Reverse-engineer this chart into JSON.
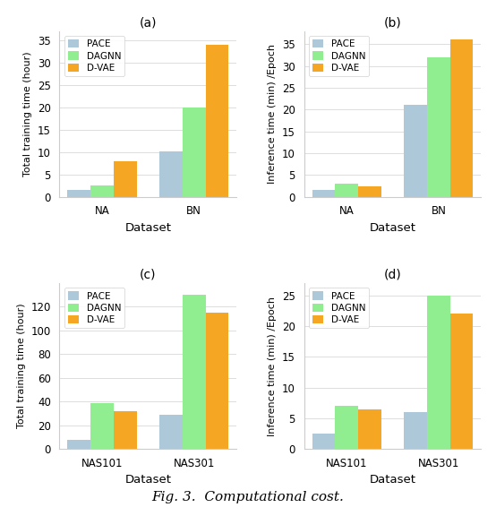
{
  "colors": {
    "PACE": "#adc8d8",
    "DAGNN": "#90ee90",
    "DVAE": "#f5a623"
  },
  "subplot_a": {
    "title": "(a)",
    "xlabel": "Dataset",
    "ylabel": "Total training time (hour)",
    "categories": [
      "NA",
      "BN"
    ],
    "PACE": [
      1.5,
      10.2
    ],
    "DAGNN": [
      2.5,
      20.0
    ],
    "DVAE": [
      8.0,
      34.0
    ],
    "ylim": [
      0,
      37
    ],
    "yticks": [
      0,
      5,
      10,
      15,
      20,
      25,
      30,
      35
    ]
  },
  "subplot_b": {
    "title": "(b)",
    "xlabel": "Dataset",
    "ylabel": "Inference time (min) /Epoch",
    "categories": [
      "NA",
      "BN"
    ],
    "PACE": [
      1.5,
      21.0
    ],
    "DAGNN": [
      3.0,
      32.0
    ],
    "DVAE": [
      2.5,
      36.0
    ],
    "ylim": [
      0,
      38
    ],
    "yticks": [
      0,
      5,
      10,
      15,
      20,
      25,
      30,
      35
    ]
  },
  "subplot_c": {
    "title": "(c)",
    "xlabel": "Dataset",
    "ylabel": "Total training time (hour)",
    "categories": [
      "NAS101",
      "NAS301"
    ],
    "PACE": [
      8.0,
      29.0
    ],
    "DAGNN": [
      39.0,
      130.0
    ],
    "DVAE": [
      32.0,
      115.0
    ],
    "ylim": [
      0,
      140
    ],
    "yticks": [
      0,
      20,
      40,
      60,
      80,
      100,
      120
    ]
  },
  "subplot_d": {
    "title": "(d)",
    "xlabel": "Dataset",
    "ylabel": "Inference time (min) /Epoch",
    "categories": [
      "NAS101",
      "NAS301"
    ],
    "PACE": [
      2.5,
      6.0
    ],
    "DAGNN": [
      7.0,
      25.0
    ],
    "DVAE": [
      6.5,
      22.0
    ],
    "ylim": [
      0,
      27
    ],
    "yticks": [
      0,
      5,
      10,
      15,
      20,
      25
    ]
  },
  "fig_caption": "Fig. 3.  Computational cost."
}
